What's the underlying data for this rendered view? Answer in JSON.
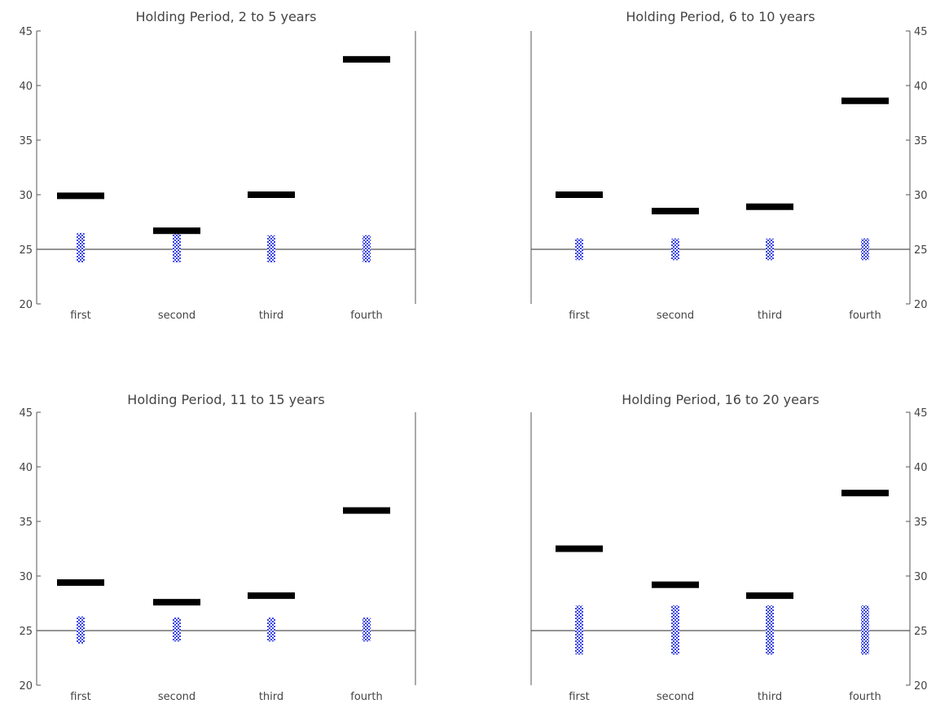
{
  "colors": {
    "axis": "#555555",
    "median_bar": "#000000",
    "range_bar": "#3a45e6",
    "range_bar_light": "#ffffff",
    "text": "#444444"
  },
  "chart_data": [
    {
      "type": "bar",
      "title": "Holding Period, 2 to 5 years",
      "categories": [
        "first",
        "second",
        "third",
        "fourth"
      ],
      "ylim": [
        20,
        45
      ],
      "yticks": [
        "20",
        "25",
        "30",
        "35",
        "40",
        "45"
      ],
      "axis_side": "left",
      "reference_line": 25,
      "series": [
        {
          "values": [
            29.9,
            26.7,
            30.0,
            42.4
          ]
        },
        {
          "ranges": [
            [
              23.8,
              26.5
            ],
            [
              23.8,
              26.5
            ],
            [
              23.8,
              26.3
            ],
            [
              23.8,
              26.3
            ]
          ]
        }
      ]
    },
    {
      "type": "bar",
      "title": "Holding Period, 6 to 10 years",
      "categories": [
        "first",
        "second",
        "third",
        "fourth"
      ],
      "ylim": [
        20,
        45
      ],
      "yticks": [
        "20",
        "25",
        "30",
        "35",
        "40",
        "45"
      ],
      "axis_side": "right",
      "reference_line": 25,
      "series": [
        {
          "values": [
            30.0,
            28.5,
            28.9,
            38.6
          ]
        },
        {
          "ranges": [
            [
              24.0,
              26.0
            ],
            [
              24.0,
              26.0
            ],
            [
              24.0,
              26.0
            ],
            [
              24.0,
              26.0
            ]
          ]
        }
      ]
    },
    {
      "type": "bar",
      "title": "Holding Period, 11 to 15 years",
      "categories": [
        "first",
        "second",
        "third",
        "fourth"
      ],
      "ylim": [
        20,
        45
      ],
      "yticks": [
        "20",
        "25",
        "30",
        "35",
        "40",
        "45"
      ],
      "axis_side": "left",
      "reference_line": 25,
      "series": [
        {
          "values": [
            29.4,
            27.6,
            28.2,
            36.0
          ]
        },
        {
          "ranges": [
            [
              23.8,
              26.3
            ],
            [
              24.0,
              26.2
            ],
            [
              24.0,
              26.2
            ],
            [
              24.0,
              26.2
            ]
          ]
        }
      ]
    },
    {
      "type": "bar",
      "title": "Holding Period, 16 to 20 years",
      "categories": [
        "first",
        "second",
        "third",
        "fourth"
      ],
      "ylim": [
        20,
        45
      ],
      "yticks": [
        "20",
        "25",
        "30",
        "35",
        "40",
        "45"
      ],
      "axis_side": "right",
      "reference_line": 25,
      "series": [
        {
          "values": [
            32.5,
            29.2,
            28.2,
            37.6
          ]
        },
        {
          "ranges": [
            [
              22.8,
              27.3
            ],
            [
              22.8,
              27.3
            ],
            [
              22.8,
              27.3
            ],
            [
              22.8,
              27.3
            ]
          ]
        }
      ]
    }
  ]
}
